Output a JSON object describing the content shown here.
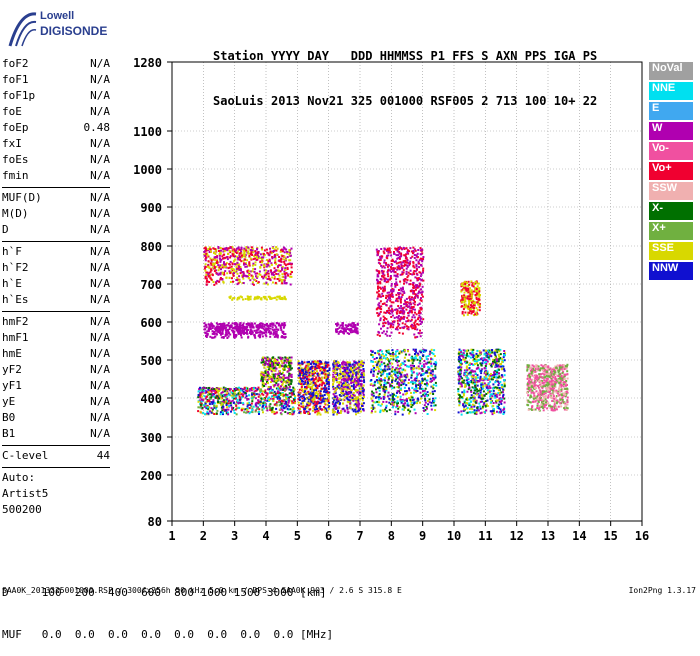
{
  "logo": {
    "line1": "Lowell",
    "line2": "DIGISONDE"
  },
  "header": {
    "labels": [
      "Station",
      "YYYY",
      "DAY",
      "DDD",
      "HHMMSS",
      "P1",
      "FFS",
      "S",
      "AXN",
      "PPS",
      "IGA",
      "PS"
    ],
    "values": [
      "SaoLuis",
      "2013",
      "Nov21",
      "325",
      "001000",
      "RSF",
      "005",
      "2",
      "713",
      "100",
      "10+",
      "22"
    ]
  },
  "parameters": {
    "group1": [
      {
        "name": "foF2",
        "value": "N/A"
      },
      {
        "name": "foF1",
        "value": "N/A"
      },
      {
        "name": "foF1p",
        "value": "N/A"
      },
      {
        "name": "foE",
        "value": "N/A"
      },
      {
        "name": "foEp",
        "value": "0.48"
      },
      {
        "name": "fxI",
        "value": "N/A"
      },
      {
        "name": "foEs",
        "value": "N/A"
      },
      {
        "name": "fmin",
        "value": "N/A"
      }
    ],
    "group2": [
      {
        "name": "MUF(D)",
        "value": "N/A"
      },
      {
        "name": "M(D)",
        "value": "N/A"
      },
      {
        "name": "D",
        "value": "N/A"
      }
    ],
    "group3": [
      {
        "name": "h`F",
        "value": "N/A"
      },
      {
        "name": "h`F2",
        "value": "N/A"
      },
      {
        "name": "h`E",
        "value": "N/A"
      },
      {
        "name": "h`Es",
        "value": "N/A"
      }
    ],
    "group4": [
      {
        "name": "hmF2",
        "value": "N/A"
      },
      {
        "name": "hmF1",
        "value": "N/A"
      },
      {
        "name": "hmE",
        "value": "N/A"
      },
      {
        "name": "yF2",
        "value": "N/A"
      },
      {
        "name": "yF1",
        "value": "N/A"
      },
      {
        "name": "yE",
        "value": "N/A"
      },
      {
        "name": "B0",
        "value": "N/A"
      },
      {
        "name": "B1",
        "value": "N/A"
      }
    ],
    "clevel": {
      "name": "C-level",
      "value": "44"
    },
    "auto": [
      "Auto:",
      "Artist5",
      "500200"
    ]
  },
  "legend": [
    {
      "label": "NoVal",
      "color": "#a0a0a0"
    },
    {
      "label": "NNE",
      "color": "#00e0f0"
    },
    {
      "label": "E",
      "color": "#40a8f0"
    },
    {
      "label": "W",
      "color": "#b000b0"
    },
    {
      "label": "Vo-",
      "color": "#f050a0"
    },
    {
      "label": "Vo+",
      "color": "#f00030"
    },
    {
      "label": "SSW",
      "color": "#f0b0b0"
    },
    {
      "label": "X-",
      "color": "#007000"
    },
    {
      "label": "X+",
      "color": "#70b040"
    },
    {
      "label": "SSE",
      "color": "#d8d800"
    },
    {
      "label": "NNW",
      "color": "#1010d0"
    }
  ],
  "distance": {
    "row1": "D     100  200  400  600  800 1000 1500 3000 [km]",
    "row2": "MUF   0.0  0.0  0.0  0.0  0.0  0.0  0.0  0.0 [MHz]"
  },
  "footer": {
    "left": "SAA0K_2013325001000.RSF / 300fx256h 50 kHz 5.0 km / DPS-4 SAA0K 903 / 2.6 S 315.8 E",
    "right": "Ion2Png 1.3.17"
  },
  "chart_data": {
    "type": "scatter",
    "title": "",
    "xlabel": "",
    "ylabel": "",
    "xlim": [
      1,
      16
    ],
    "ylim": [
      80,
      1280
    ],
    "x_ticks": [
      1,
      2,
      3,
      4,
      5,
      6,
      7,
      8,
      9,
      10,
      11,
      12,
      13,
      14,
      15,
      16
    ],
    "y_ticks": [
      80,
      200,
      300,
      400,
      500,
      600,
      700,
      800,
      900,
      1000,
      1100,
      1280
    ],
    "y_scale": "ionogram height (non-linear)",
    "grid": true,
    "clusters": [
      {
        "x": [
          1.8,
          4.9
        ],
        "y": [
          360,
          430
        ],
        "modes": [
          "X-",
          "X+",
          "Vo+",
          "W",
          "NNW",
          "NNE",
          "SSE"
        ]
      },
      {
        "x": [
          3.8,
          4.8
        ],
        "y": [
          430,
          510
        ],
        "modes": [
          "SSE",
          "W",
          "X-"
        ]
      },
      {
        "x": [
          2.0,
          4.6
        ],
        "y": [
          560,
          600
        ],
        "modes": [
          "W"
        ]
      },
      {
        "x": [
          2.8,
          4.6
        ],
        "y": [
          660,
          670
        ],
        "modes": [
          "SSE"
        ]
      },
      {
        "x": [
          2.0,
          4.8
        ],
        "y": [
          700,
          800
        ],
        "modes": [
          "W",
          "Vo+",
          "SSE"
        ]
      },
      {
        "x": [
          5.0,
          6.0
        ],
        "y": [
          360,
          500
        ],
        "modes": [
          "SSE",
          "NNW",
          "Vo+"
        ]
      },
      {
        "x": [
          6.1,
          7.1
        ],
        "y": [
          360,
          500
        ],
        "modes": [
          "SSE",
          "W",
          "NNW"
        ]
      },
      {
        "x": [
          6.2,
          6.9
        ],
        "y": [
          570,
          600
        ],
        "modes": [
          "W"
        ]
      },
      {
        "x": [
          7.3,
          9.4
        ],
        "y": [
          360,
          530
        ],
        "modes": [
          "NNE",
          "NNW",
          "W",
          "SSE",
          "X-"
        ]
      },
      {
        "x": [
          7.5,
          9.0
        ],
        "y": [
          560,
          800
        ],
        "modes": [
          "W",
          "Vo+"
        ]
      },
      {
        "x": [
          10.1,
          11.6
        ],
        "y": [
          360,
          530
        ],
        "modes": [
          "NNW",
          "X-",
          "SSE",
          "W",
          "NNE"
        ]
      },
      {
        "x": [
          10.2,
          10.8
        ],
        "y": [
          620,
          710
        ],
        "modes": [
          "Vo+",
          "SSE"
        ]
      },
      {
        "x": [
          12.3,
          13.6
        ],
        "y": [
          370,
          490
        ],
        "modes": [
          "Vo-",
          "SSW",
          "X+"
        ]
      }
    ]
  }
}
